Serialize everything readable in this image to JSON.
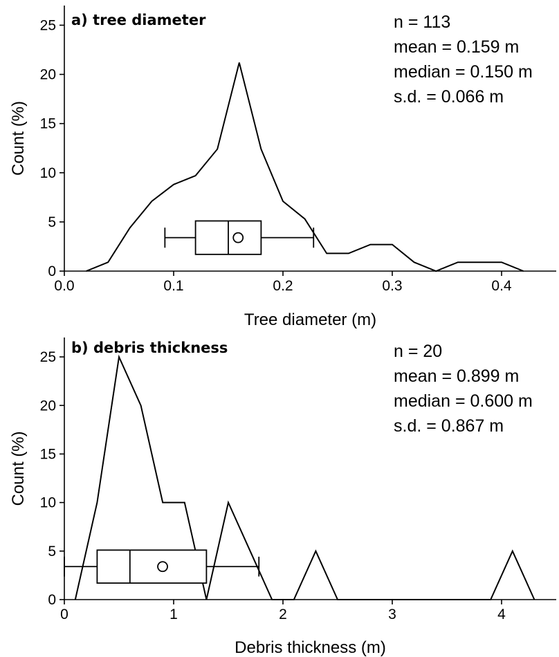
{
  "chart_data": [
    {
      "type": "line",
      "panel_label": "a) tree diameter",
      "xlabel": "Tree diameter (m)",
      "ylabel": "Count (%)",
      "xlim": [
        0,
        0.45
      ],
      "ylim": [
        0,
        27
      ],
      "xticks": [
        0.0,
        0.1,
        0.2,
        0.3,
        0.4
      ],
      "xtick_labels": [
        "0.0",
        "0.1",
        "0.2",
        "0.3",
        "0.4"
      ],
      "yticks": [
        0,
        5,
        10,
        15,
        20,
        25
      ],
      "ytick_labels": [
        "0",
        "5",
        "10",
        "15",
        "20",
        "25"
      ],
      "grid": false,
      "stats": [
        "n = 113",
        "mean = 0.159 m",
        "median = 0.150 m",
        "s.d. = 0.066 m"
      ],
      "series": [
        {
          "x": [
            0.02,
            0.04,
            0.06,
            0.08,
            0.1,
            0.12,
            0.14,
            0.16,
            0.18,
            0.2,
            0.22,
            0.24,
            0.26,
            0.28,
            0.3,
            0.32,
            0.34,
            0.36,
            0.38,
            0.4,
            0.42
          ],
          "y": [
            0,
            0.9,
            4.4,
            7.1,
            8.8,
            9.7,
            12.4,
            21.2,
            12.4,
            7.1,
            5.3,
            1.8,
            1.8,
            2.7,
            2.7,
            0.9,
            0,
            0.9,
            0.9,
            0.9,
            0
          ]
        }
      ],
      "boxplot": {
        "whisker_low": 0.092,
        "q1": 0.12,
        "median": 0.15,
        "q3": 0.18,
        "whisker_high": 0.228,
        "mean": 0.159,
        "y_center": 3.4,
        "y_half_height": 1.7
      }
    },
    {
      "type": "line",
      "panel_label": "b) debris thickness",
      "xlabel": "Debris thickness (m)",
      "ylabel": "Count (%)",
      "xlim": [
        0,
        4.5
      ],
      "ylim": [
        0,
        27
      ],
      "xticks": [
        0,
        1,
        2,
        3,
        4
      ],
      "xtick_labels": [
        "0",
        "1",
        "2",
        "3",
        "4"
      ],
      "yticks": [
        0,
        5,
        10,
        15,
        20,
        25
      ],
      "ytick_labels": [
        "0",
        "5",
        "10",
        "15",
        "20",
        "25"
      ],
      "grid": false,
      "stats": [
        "n = 20",
        "mean = 0.899 m",
        "median = 0.600 m",
        "s.d. = 0.867 m"
      ],
      "series": [
        {
          "x": [
            0.1,
            0.3,
            0.5,
            0.7,
            0.9,
            1.1,
            1.3,
            1.5,
            1.7,
            1.9,
            2.1,
            2.3,
            2.5,
            3.9,
            4.1,
            4.3
          ],
          "y": [
            0,
            10,
            25,
            20,
            10,
            10,
            0,
            10,
            5,
            0,
            0,
            5,
            0,
            0,
            5,
            0
          ]
        }
      ],
      "boxplot": {
        "whisker_low": 0.0,
        "q1": 0.3,
        "median": 0.6,
        "q3": 1.3,
        "whisker_high": 1.78,
        "mean": 0.899,
        "y_center": 3.4,
        "y_half_height": 1.7
      }
    }
  ]
}
